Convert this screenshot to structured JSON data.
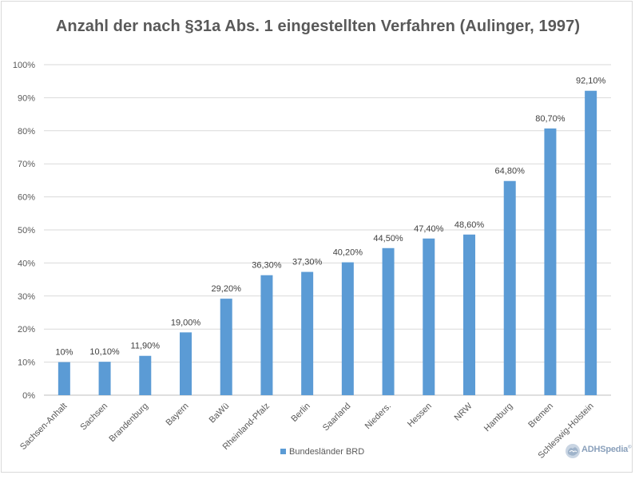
{
  "chart_data": {
    "type": "bar",
    "title": "Anzahl der nach §31a Abs. 1 eingestellten Verfahren (Aulinger, 1997)",
    "categories": [
      "Sachsen-Anhalt",
      "Sachsen",
      "Brandenburg",
      "Bayern",
      "BaWü",
      "Rheinland-Pfalz",
      "Berlin",
      "Saarland",
      "Nieders.",
      "Hessen",
      "NRW",
      "Hamburg",
      "Bremen",
      "Schleswig-Holstein"
    ],
    "series": [
      {
        "name": "Bundesländer BRD",
        "values": [
          10,
          10.1,
          11.9,
          19.0,
          29.2,
          36.3,
          37.3,
          40.2,
          44.5,
          47.4,
          48.6,
          64.8,
          80.7,
          92.1
        ],
        "labels": [
          "10%",
          "10,10%",
          "11,90%",
          "19,00%",
          "29,20%",
          "36,30%",
          "37,30%",
          "40,20%",
          "44,50%",
          "47,40%",
          "48,60%",
          "64,80%",
          "80,70%",
          "92,10%"
        ]
      }
    ],
    "ylim": [
      0,
      100
    ],
    "yticks": [
      "0%",
      "10%",
      "20%",
      "30%",
      "40%",
      "50%",
      "60%",
      "70%",
      "80%",
      "90%",
      "100%"
    ],
    "grid": true,
    "legend_position": "bottom",
    "bar_color": "#5b9bd5"
  },
  "watermark": {
    "text": "ADHSpedia",
    "suffix": "©"
  }
}
